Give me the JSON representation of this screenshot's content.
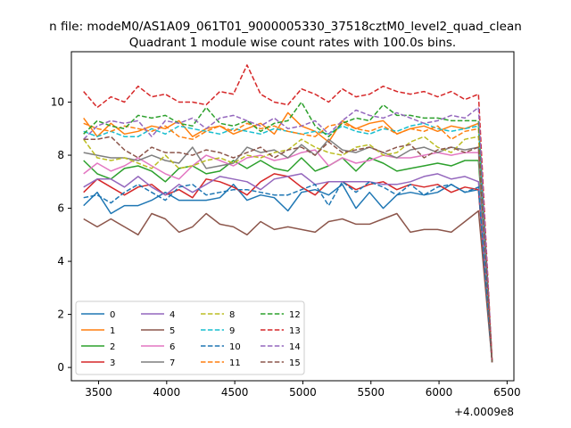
{
  "chart_data": {
    "type": "line",
    "suptitle": "n file: modeM0/AS1A09_061T01_9000005330_37518cztM0_level2_quad_clean",
    "title": "Quadrant 1 module wise count rates with 100.0s bins.",
    "xlabel": "",
    "ylabel": "",
    "x_offset_label": "+4.0009e8",
    "xlim": [
      3300,
      6550
    ],
    "ylim": [
      -0.5,
      11.9
    ],
    "xticks": [
      3500,
      4000,
      4500,
      5000,
      5500,
      6000,
      6500
    ],
    "yticks": [
      0,
      2,
      4,
      6,
      8,
      10
    ],
    "grid": false,
    "legend": {
      "position": "lower-left",
      "columns": 4
    },
    "x": [
      3390,
      3490,
      3590,
      3690,
      3790,
      3890,
      3990,
      4090,
      4190,
      4290,
      4390,
      4490,
      4590,
      4690,
      4790,
      4890,
      4990,
      5090,
      5190,
      5290,
      5390,
      5490,
      5590,
      5690,
      5790,
      5890,
      5990,
      6090,
      6190,
      6290,
      6390
    ],
    "series": [
      {
        "name": "0",
        "color": "#1f77b4",
        "dash": "solid",
        "values": [
          6.1,
          6.6,
          5.8,
          6.1,
          6.1,
          6.3,
          6.6,
          6.3,
          6.3,
          6.3,
          6.4,
          6.9,
          6.3,
          6.5,
          6.4,
          5.9,
          6.6,
          6.7,
          6.5,
          6.9,
          6.0,
          6.6,
          6.0,
          6.5,
          6.6,
          6.5,
          6.6,
          6.9,
          6.6,
          6.7,
          0.2
        ]
      },
      {
        "name": "1",
        "color": "#ff7f0e",
        "dash": "solid",
        "values": [
          9.4,
          8.7,
          9.2,
          8.8,
          8.9,
          9.1,
          9.0,
          9.3,
          8.7,
          9.0,
          9.1,
          8.8,
          9.0,
          9.2,
          8.8,
          9.6,
          9.1,
          8.9,
          8.5,
          9.3,
          9.0,
          9.2,
          9.3,
          8.8,
          9.0,
          9.1,
          8.9,
          9.1,
          9.0,
          9.2,
          0.2
        ]
      },
      {
        "name": "2",
        "color": "#2ca02c",
        "dash": "solid",
        "values": [
          7.8,
          7.3,
          7.1,
          7.5,
          7.6,
          7.4,
          7.0,
          7.5,
          7.6,
          7.3,
          7.4,
          7.8,
          7.5,
          7.8,
          7.5,
          7.4,
          7.9,
          7.4,
          7.6,
          7.9,
          7.4,
          7.9,
          7.7,
          7.4,
          7.5,
          7.6,
          7.7,
          7.6,
          7.8,
          7.8,
          0.2
        ]
      },
      {
        "name": "3",
        "color": "#d62728",
        "dash": "solid",
        "values": [
          6.6,
          7.1,
          6.8,
          6.5,
          6.8,
          6.9,
          6.5,
          6.7,
          6.4,
          7.1,
          7.0,
          6.8,
          6.5,
          7.0,
          7.3,
          7.2,
          6.8,
          6.5,
          7.0,
          7.0,
          6.7,
          6.9,
          7.0,
          6.7,
          6.9,
          6.8,
          6.9,
          6.6,
          6.8,
          6.7,
          0.2
        ]
      },
      {
        "name": "4",
        "color": "#9467bd",
        "dash": "solid",
        "values": [
          6.8,
          7.1,
          7.1,
          6.8,
          7.2,
          6.8,
          6.5,
          6.9,
          6.6,
          6.9,
          7.2,
          7.1,
          7.0,
          6.7,
          7.1,
          7.2,
          7.3,
          6.9,
          7.0,
          7.0,
          7.0,
          7.0,
          6.9,
          6.9,
          7.0,
          7.2,
          7.3,
          7.1,
          7.2,
          7.0,
          0.2
        ]
      },
      {
        "name": "5",
        "color": "#8c564b",
        "dash": "solid",
        "values": [
          5.6,
          5.3,
          5.6,
          5.3,
          5.0,
          5.8,
          5.6,
          5.1,
          5.3,
          5.8,
          5.4,
          5.3,
          5.0,
          5.5,
          5.2,
          5.3,
          5.2,
          5.1,
          5.5,
          5.6,
          5.4,
          5.4,
          5.6,
          5.8,
          5.1,
          5.2,
          5.2,
          5.1,
          5.5,
          5.9,
          0.2
        ]
      },
      {
        "name": "6",
        "color": "#e377c2",
        "dash": "solid",
        "values": [
          7.3,
          7.7,
          7.4,
          7.6,
          7.9,
          7.6,
          7.3,
          7.1,
          7.6,
          8.0,
          7.8,
          7.6,
          7.9,
          8.0,
          7.8,
          7.9,
          8.1,
          8.2,
          7.6,
          7.9,
          7.7,
          7.8,
          8.0,
          7.9,
          7.9,
          8.0,
          8.1,
          8.0,
          8.1,
          8.1,
          0.2
        ]
      },
      {
        "name": "7",
        "color": "#7f7f7f",
        "dash": "solid",
        "values": [
          8.1,
          8.0,
          7.9,
          7.9,
          7.8,
          8.0,
          7.8,
          7.7,
          8.3,
          7.5,
          7.6,
          7.7,
          8.3,
          8.1,
          8.2,
          7.9,
          8.4,
          8.0,
          8.6,
          8.2,
          8.1,
          8.3,
          8.1,
          7.9,
          8.2,
          8.3,
          8.1,
          8.3,
          8.2,
          8.3,
          0.2
        ]
      },
      {
        "name": "8",
        "color": "#bcbd22",
        "dash": "dashed",
        "values": [
          8.6,
          7.9,
          7.8,
          7.9,
          7.7,
          7.5,
          8.0,
          7.5,
          7.6,
          7.8,
          7.9,
          7.7,
          8.0,
          7.9,
          8.1,
          8.2,
          8.6,
          8.3,
          8.1,
          8.0,
          8.3,
          8.4,
          8.0,
          8.1,
          8.5,
          8.7,
          8.3,
          8.1,
          8.6,
          8.7,
          0.2
        ]
      },
      {
        "name": "9",
        "color": "#17becf",
        "dash": "dashed",
        "values": [
          8.9,
          8.7,
          8.9,
          8.7,
          8.7,
          9.0,
          8.8,
          9.1,
          9.0,
          8.9,
          8.8,
          9.0,
          8.9,
          8.8,
          9.0,
          8.9,
          8.8,
          8.9,
          8.8,
          9.1,
          8.9,
          8.8,
          9.0,
          8.9,
          9.1,
          9.2,
          9.0,
          8.9,
          9.0,
          9.1,
          0.2
        ]
      },
      {
        "name": "10",
        "color": "#1f77b4",
        "dash": "dashed",
        "values": [
          6.4,
          6.5,
          6.2,
          6.6,
          6.9,
          6.6,
          6.3,
          6.8,
          6.9,
          6.5,
          6.6,
          6.7,
          6.7,
          6.6,
          6.5,
          6.5,
          6.7,
          6.9,
          6.1,
          7.0,
          6.6,
          7.0,
          6.8,
          6.5,
          6.9,
          6.5,
          6.8,
          6.9,
          6.6,
          6.8,
          0.2
        ]
      },
      {
        "name": "11",
        "color": "#ff7f0e",
        "dash": "dashed",
        "values": [
          9.2,
          9.0,
          8.9,
          9.1,
          9.0,
          8.9,
          9.1,
          8.7,
          8.6,
          8.9,
          9.1,
          8.9,
          9.2,
          9.0,
          9.1,
          8.9,
          8.8,
          8.7,
          9.1,
          9.2,
          9.0,
          8.9,
          9.1,
          8.8,
          9.0,
          8.9,
          9.1,
          8.6,
          8.9,
          9.0,
          0.2
        ]
      },
      {
        "name": "12",
        "color": "#2ca02c",
        "dash": "dashed",
        "values": [
          8.8,
          9.3,
          9.1,
          9.0,
          9.5,
          9.4,
          9.5,
          9.2,
          9.1,
          9.8,
          9.2,
          9.1,
          9.3,
          8.9,
          9.2,
          9.3,
          10.0,
          9.1,
          8.7,
          9.2,
          9.4,
          9.3,
          9.9,
          9.5,
          9.5,
          9.4,
          9.4,
          9.3,
          9.3,
          9.3,
          0.2
        ]
      },
      {
        "name": "13",
        "color": "#d62728",
        "dash": "dashed",
        "values": [
          10.4,
          9.8,
          10.2,
          10.0,
          10.6,
          10.2,
          10.3,
          10.0,
          10.0,
          9.9,
          10.4,
          10.3,
          11.4,
          10.3,
          10.0,
          9.9,
          10.5,
          10.3,
          10.0,
          10.5,
          10.2,
          10.3,
          10.6,
          10.4,
          10.3,
          10.4,
          10.2,
          10.4,
          10.1,
          10.3,
          0.2
        ]
      },
      {
        "name": "14",
        "color": "#9467bd",
        "dash": "dashed",
        "values": [
          8.6,
          9.1,
          9.3,
          9.2,
          9.3,
          8.7,
          9.3,
          9.2,
          9.4,
          9.0,
          9.4,
          9.5,
          9.3,
          9.1,
          9.4,
          9.0,
          9.1,
          9.3,
          8.8,
          9.3,
          9.7,
          9.5,
          9.4,
          9.6,
          9.4,
          9.2,
          9.3,
          9.5,
          9.4,
          9.8,
          0.2
        ]
      },
      {
        "name": "15",
        "color": "#8c564b",
        "dash": "dashed",
        "values": [
          8.6,
          8.6,
          8.7,
          8.2,
          7.9,
          8.3,
          8.1,
          8.1,
          8.0,
          8.2,
          8.1,
          7.9,
          8.1,
          8.3,
          7.9,
          8.2,
          8.3,
          8.0,
          8.5,
          8.1,
          8.2,
          8.3,
          8.1,
          8.3,
          8.4,
          7.9,
          8.2,
          8.3,
          8.1,
          8.3,
          0.2
        ]
      }
    ]
  }
}
